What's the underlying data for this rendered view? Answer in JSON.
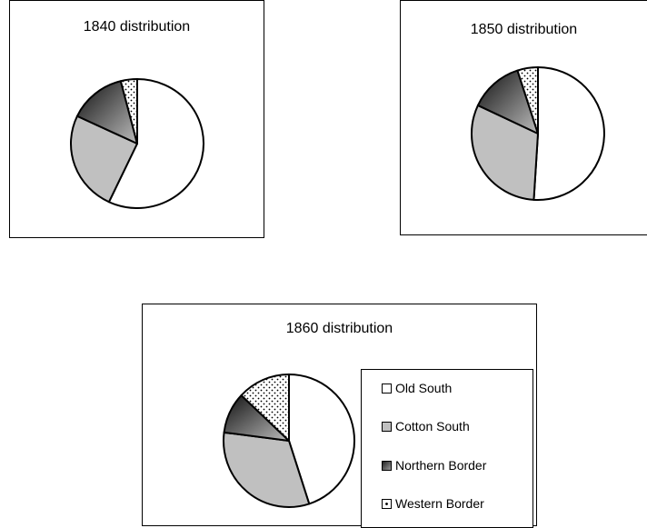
{
  "patterns": {
    "Old South": "white",
    "Cotton South": "lightgray",
    "Northern Border": "dark-gradient",
    "Western Border": "dotted"
  },
  "colors": {
    "Old South": "#ffffff",
    "Cotton South": "#c0c0c0",
    "Northern Border": "#555555",
    "Western Border": "#ffffff"
  },
  "chart_data": [
    {
      "type": "pie",
      "title": "1840 distribution",
      "series": [
        {
          "name": "Old South",
          "value": 57
        },
        {
          "name": "Cotton South",
          "value": 25
        },
        {
          "name": "Northern Border",
          "value": 14
        },
        {
          "name": "Western Border",
          "value": 4
        }
      ]
    },
    {
      "type": "pie",
      "title": "1850 distribution",
      "series": [
        {
          "name": "Old South",
          "value": 51
        },
        {
          "name": "Cotton South",
          "value": 31
        },
        {
          "name": "Northern Border",
          "value": 13
        },
        {
          "name": "Western Border",
          "value": 5
        }
      ]
    },
    {
      "type": "pie",
      "title": "1860 distribution",
      "legend": [
        "Old South",
        "Cotton South",
        "Northern Border",
        "Western Border"
      ],
      "series": [
        {
          "name": "Old South",
          "value": 45
        },
        {
          "name": "Cotton South",
          "value": 32
        },
        {
          "name": "Northern Border",
          "value": 10
        },
        {
          "name": "Western Border",
          "value": 13
        }
      ]
    }
  ]
}
